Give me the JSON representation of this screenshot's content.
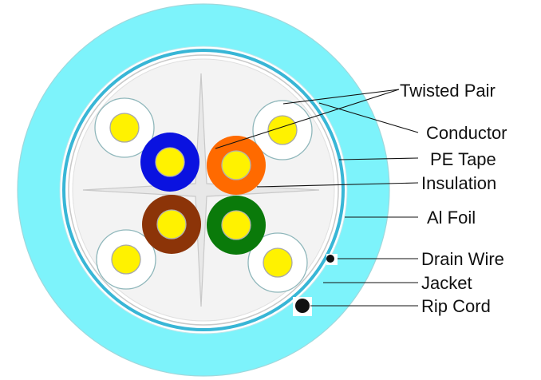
{
  "labels": {
    "twisted_pair": "Twisted Pair",
    "conductor": "Conductor",
    "pe_tape": "PE Tape",
    "insulation": "Insulation",
    "al_foil": "Al Foil",
    "drain_wire": "Drain Wire",
    "jacket": "Jacket",
    "rip_cord": "Rip Cord"
  },
  "colors": {
    "jacket": "#7df3fb",
    "jacket_stroke": "#9dd9de",
    "inner_core": "#f2f2f2",
    "foil": "#38b6d6",
    "separator": "#e8e8e8",
    "conductor": "#fff200",
    "blue_pair": "#0a12e0",
    "orange_pair": "#ff6a00",
    "brown_pair": "#8c3408",
    "green_pair": "#0a7a0a",
    "clear_pair": "#ffffff",
    "drain_wire": "#111111",
    "rip_cord": "#111111"
  }
}
